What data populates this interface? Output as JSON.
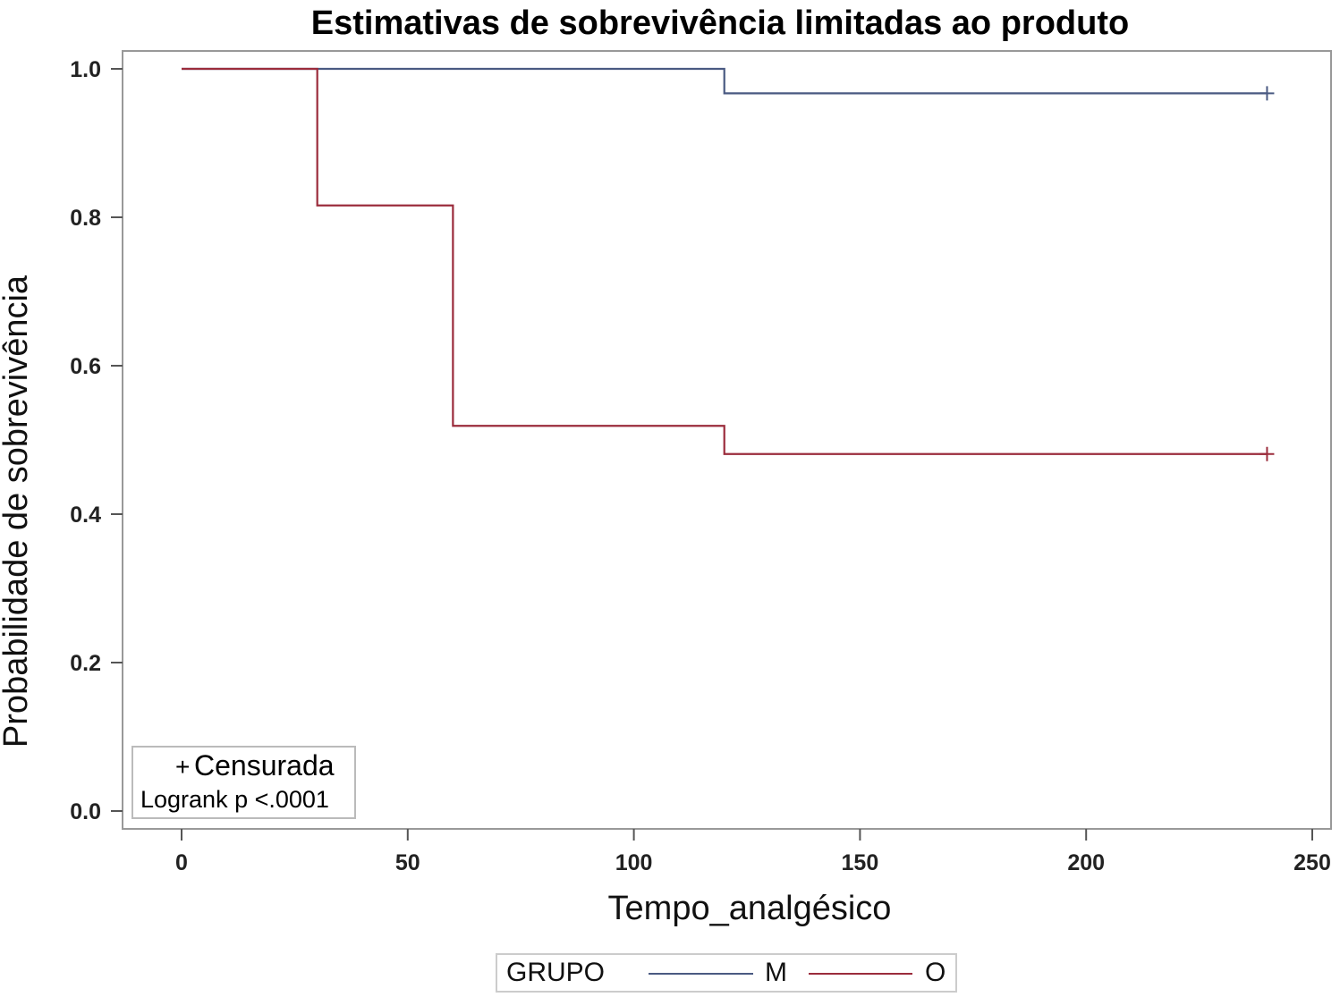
{
  "chart_data": {
    "type": "line",
    "title": "Estimativas de sobrevivência limitadas ao produto",
    "xlabel": "Tempo_analgésico",
    "ylabel": "Probabilidade de sobrevivência",
    "xlim": [
      0,
      250
    ],
    "ylim": [
      0,
      1
    ],
    "xticks": [
      "0",
      "50",
      "100",
      "150",
      "200",
      "250"
    ],
    "yticks": [
      "0.0",
      "0.2",
      "0.4",
      "0.6",
      "0.8",
      "1.0"
    ],
    "step": true,
    "grid": false,
    "series": [
      {
        "name": "M",
        "color": "#4a5a82",
        "x": [
          0,
          120,
          240
        ],
        "y": [
          1.0,
          0.967,
          0.967
        ],
        "censored": [
          [
            240,
            0.967
          ]
        ]
      },
      {
        "name": "O",
        "color": "#9b2c3c",
        "x": [
          0,
          30,
          60,
          120,
          240
        ],
        "y": [
          1.0,
          0.816,
          0.519,
          0.481,
          0.481
        ],
        "censored": [
          [
            240,
            0.481
          ]
        ]
      }
    ],
    "inset": {
      "censor_symbol": "+",
      "censor_label": "Censurada",
      "test": "Logrank p <.0001"
    },
    "legend": {
      "title": "GRUPO",
      "placement": "bottom"
    }
  }
}
